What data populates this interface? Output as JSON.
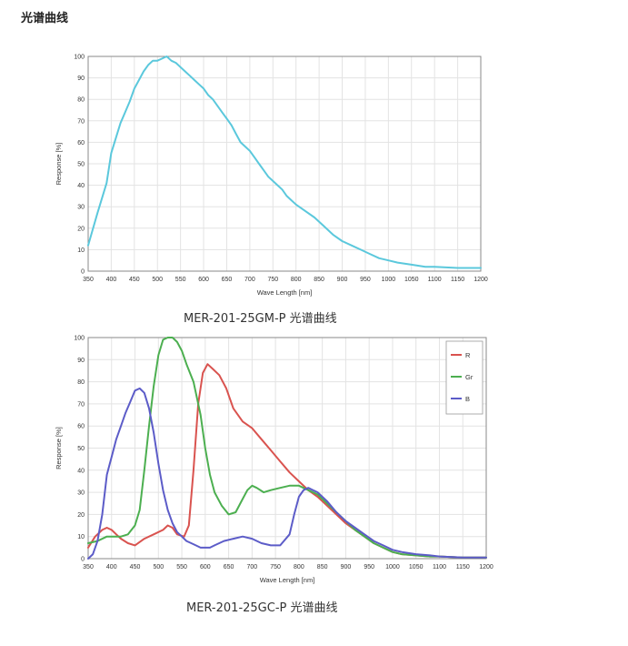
{
  "page": {
    "section_title": "光谱曲线"
  },
  "captions": {
    "mono": "MER-201-25GM-P 光谱曲线",
    "color": "MER-201-25GC-P 光谱曲线"
  },
  "chart_data": [
    {
      "type": "line",
      "xlabel": "Wave Length [nm]",
      "ylabel": "Response  [%]",
      "xlim": [
        350,
        1200
      ],
      "ylim": [
        0,
        100
      ],
      "xticks": [
        350,
        400,
        450,
        500,
        550,
        600,
        650,
        700,
        750,
        800,
        850,
        900,
        950,
        1000,
        1050,
        1100,
        1150,
        1200
      ],
      "yticks": [
        0,
        10,
        20,
        30,
        40,
        50,
        60,
        70,
        80,
        90,
        100
      ],
      "grid": true,
      "series": [
        {
          "color": "#5bc8dc",
          "x": [
            350,
            370,
            390,
            400,
            410,
            420,
            430,
            440,
            450,
            460,
            470,
            480,
            490,
            500,
            510,
            520,
            530,
            540,
            550,
            560,
            570,
            580,
            590,
            600,
            610,
            620,
            630,
            640,
            650,
            660,
            670,
            680,
            690,
            700,
            710,
            720,
            730,
            740,
            750,
            760,
            770,
            780,
            790,
            800,
            820,
            840,
            860,
            880,
            900,
            920,
            940,
            960,
            980,
            1000,
            1020,
            1050,
            1080,
            1100,
            1150,
            1200
          ],
          "y": [
            12,
            27,
            41,
            55,
            62,
            69,
            74,
            79,
            85,
            89,
            93,
            96,
            98,
            98,
            99,
            100,
            98,
            97,
            95,
            93,
            91,
            89,
            87,
            85,
            82,
            80,
            77,
            74,
            71,
            68,
            64,
            60,
            58,
            56,
            53,
            50,
            47,
            44,
            42,
            40,
            38,
            35,
            33,
            31,
            28,
            25,
            21,
            17,
            14,
            12,
            10,
            8,
            6,
            5,
            4,
            3,
            2,
            2,
            1.5,
            1.5
          ]
        }
      ]
    },
    {
      "type": "line",
      "xlabel": "Wave Length [nm]",
      "ylabel": "Response  [%]",
      "xlim": [
        350,
        1200
      ],
      "ylim": [
        0,
        100
      ],
      "xticks": [
        350,
        400,
        450,
        500,
        550,
        600,
        650,
        700,
        750,
        800,
        850,
        900,
        950,
        1000,
        1050,
        1100,
        1150,
        1200
      ],
      "yticks": [
        0,
        10,
        20,
        30,
        40,
        50,
        60,
        70,
        80,
        90,
        100
      ],
      "grid": true,
      "legend_position": "top-right",
      "series": [
        {
          "name": "R",
          "color": "#d9534f",
          "x": [
            350,
            365,
            380,
            390,
            400,
            410,
            420,
            435,
            450,
            470,
            490,
            510,
            520,
            530,
            540,
            555,
            565,
            575,
            585,
            595,
            605,
            615,
            630,
            645,
            660,
            680,
            700,
            720,
            740,
            760,
            780,
            800,
            820,
            840,
            860,
            880,
            900,
            920,
            940,
            960,
            980,
            1000,
            1020,
            1050,
            1080,
            1100,
            1150,
            1200
          ],
          "y": [
            5,
            10,
            13,
            14,
            13,
            11,
            9,
            7,
            6,
            9,
            11,
            13,
            15,
            14,
            11,
            10,
            15,
            40,
            70,
            84,
            88,
            86,
            83,
            77,
            68,
            62,
            59,
            54,
            49,
            44,
            39,
            35,
            31,
            28,
            24,
            20,
            16,
            13,
            10,
            7,
            5,
            3,
            2,
            1.5,
            1,
            1,
            0.5,
            0.5
          ]
        },
        {
          "name": "Gr",
          "color": "#4caf50",
          "x": [
            350,
            370,
            390,
            405,
            420,
            435,
            450,
            460,
            470,
            480,
            490,
            500,
            510,
            520,
            530,
            540,
            550,
            560,
            575,
            590,
            600,
            610,
            620,
            635,
            650,
            665,
            680,
            690,
            700,
            710,
            725,
            740,
            760,
            780,
            800,
            820,
            840,
            860,
            880,
            900,
            920,
            940,
            960,
            980,
            1000,
            1020,
            1050,
            1080,
            1100,
            1150,
            1200
          ],
          "y": [
            7,
            8,
            10,
            10,
            10,
            11,
            15,
            22,
            40,
            60,
            78,
            92,
            99,
            100,
            100,
            98,
            94,
            88,
            80,
            65,
            50,
            38,
            30,
            24,
            20,
            21,
            27,
            31,
            33,
            32,
            30,
            31,
            32,
            33,
            33,
            31,
            29,
            25,
            21,
            17,
            13,
            10,
            7,
            5,
            3,
            2,
            1.5,
            1,
            1,
            0.5,
            0.5
          ]
        },
        {
          "name": "B",
          "color": "#5c5cc8",
          "x": [
            350,
            360,
            370,
            380,
            390,
            400,
            410,
            420,
            430,
            440,
            450,
            460,
            470,
            480,
            490,
            500,
            510,
            520,
            530,
            540,
            550,
            560,
            570,
            580,
            590,
            600,
            610,
            620,
            640,
            660,
            680,
            700,
            720,
            740,
            760,
            780,
            790,
            800,
            810,
            820,
            830,
            840,
            860,
            880,
            900,
            920,
            940,
            960,
            980,
            1000,
            1020,
            1050,
            1080,
            1100,
            1150,
            1200
          ],
          "y": [
            0,
            2,
            8,
            20,
            38,
            46,
            54,
            60,
            66,
            71,
            76,
            77,
            75,
            68,
            57,
            43,
            31,
            22,
            16,
            12,
            10,
            8,
            7,
            6,
            5,
            5,
            5,
            6,
            8,
            9,
            10,
            9,
            7,
            6,
            6,
            11,
            20,
            28,
            31,
            32,
            31,
            30,
            26,
            21,
            17,
            14,
            11,
            8,
            6,
            4,
            3,
            2,
            1.5,
            1,
            0.5,
            0.5
          ]
        }
      ]
    }
  ]
}
